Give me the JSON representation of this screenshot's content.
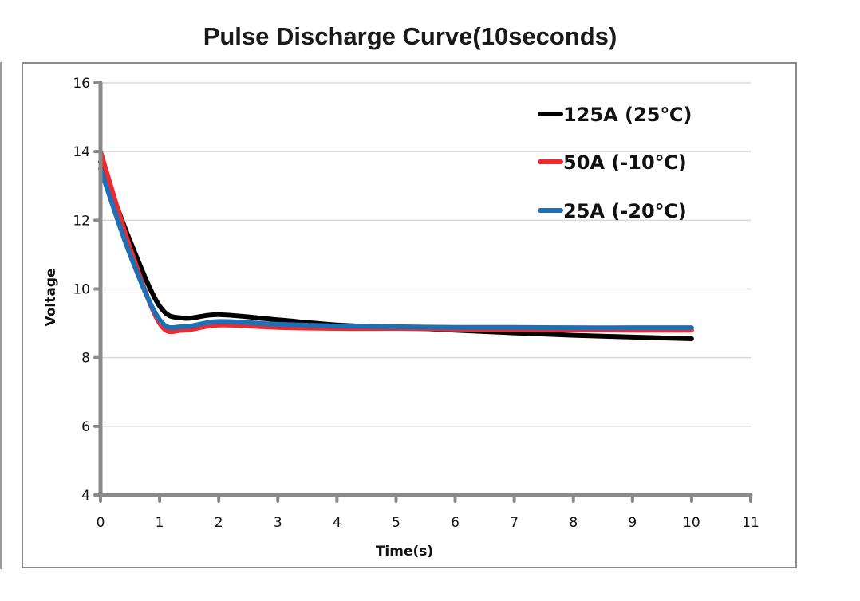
{
  "chart_data": {
    "type": "line",
    "title": "Pulse Discharge Curve(10seconds)",
    "xlabel": "Time(s)",
    "ylabel": "Voltage",
    "xlim": [
      0,
      11
    ],
    "ylim": [
      4,
      16
    ],
    "x_ticks": [
      "0",
      "1",
      "2",
      "3",
      "4",
      "5",
      "6",
      "7",
      "8",
      "9",
      "10",
      "11"
    ],
    "y_ticks": [
      "4",
      "6",
      "8",
      "10",
      "12",
      "14",
      "16"
    ],
    "grid": "horizontal",
    "legend_position": "top-right",
    "series": [
      {
        "name": "125A (25℃)",
        "color": "#000000",
        "x": [
          0,
          0.5,
          1,
          1.4,
          2,
          3,
          4,
          5,
          6,
          7,
          8,
          9,
          10
        ],
        "y": [
          13.7,
          11.4,
          9.5,
          9.15,
          9.25,
          9.1,
          8.95,
          8.88,
          8.8,
          8.72,
          8.65,
          8.6,
          8.55
        ]
      },
      {
        "name": "50A (-10℃)",
        "color": "#ee2a2f",
        "x": [
          0,
          0.5,
          1,
          1.4,
          2,
          3,
          4,
          5,
          6,
          7,
          8,
          9,
          10
        ],
        "y": [
          14.0,
          11.2,
          9.0,
          8.8,
          8.95,
          8.88,
          8.85,
          8.85,
          8.83,
          8.82,
          8.81,
          8.8,
          8.8
        ]
      },
      {
        "name": "25A (-20℃)",
        "color": "#1f6fb4",
        "x": [
          0,
          0.5,
          1,
          1.4,
          2,
          3,
          4,
          5,
          6,
          7,
          8,
          9,
          10
        ],
        "y": [
          13.5,
          11.0,
          9.1,
          8.9,
          9.05,
          8.97,
          8.92,
          8.9,
          8.88,
          8.88,
          8.87,
          8.87,
          8.87
        ]
      }
    ]
  }
}
